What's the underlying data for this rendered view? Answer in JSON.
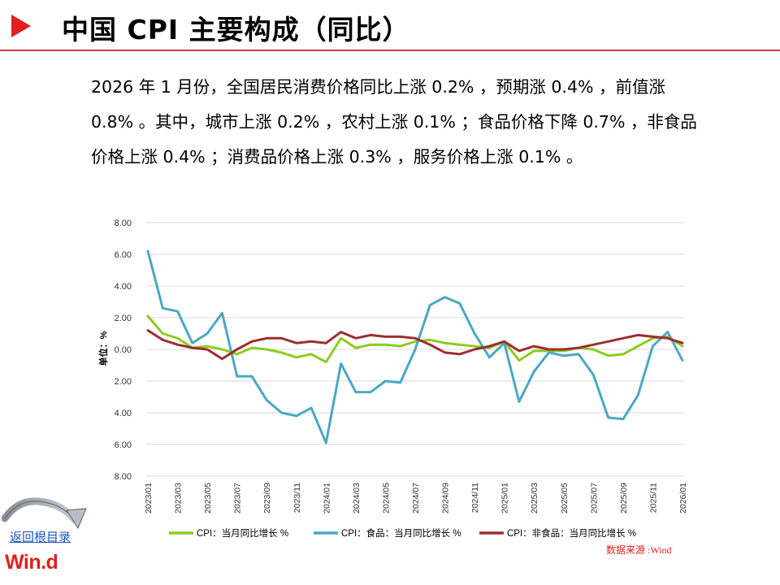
{
  "header": {
    "title": "中国 CPI 主要构成（同比）"
  },
  "summary": {
    "text": "2026 年 1 月份，全国居民消费价格同比上涨 0.2% ，预期涨 0.4% ，前值涨 0.8% 。其中，城市上涨 0.2% ，农村上涨 0.1% ；食品价格下降 0.7% ，非食品价格上涨 0.4% ；消费品价格上涨 0.3% ，服务价格上涨 0.1% 。"
  },
  "nav": {
    "back_label": "返回根目录",
    "logo_text": "Win.d"
  },
  "source": "数据来源 :Wind",
  "colors": {
    "accent": "#e02020",
    "title_rule": "#d63a3a",
    "series_cpi": "#8ccc1e",
    "series_food": "#4aa8c4",
    "series_nonfood": "#9b2f2f",
    "grid": "#d9d9d9",
    "tick_text": "#333333"
  },
  "chart_data": {
    "type": "line",
    "ylabel": "单位：%",
    "ylim": [
      -8,
      8
    ],
    "yticks": [
      8,
      6,
      4,
      2,
      0,
      -2,
      -4,
      -6,
      -8
    ],
    "ytick_labels": [
      "8.00",
      "6.00",
      "4.00",
      "2.00",
      "0.00",
      "2.00",
      "4.00",
      "6.00",
      "8.00"
    ],
    "x": [
      "2023/01",
      "2023/02",
      "2023/03",
      "2023/04",
      "2023/05",
      "2023/06",
      "2023/07",
      "2023/08",
      "2023/09",
      "2023/10",
      "2023/11",
      "2023/12",
      "2024/01",
      "2024/02",
      "2024/03",
      "2024/04",
      "2024/05",
      "2024/06",
      "2024/07",
      "2024/08",
      "2024/09",
      "2024/10",
      "2024/11",
      "2024/12",
      "2025/01",
      "2025/02",
      "2025/03",
      "2025/04",
      "2025/05",
      "2025/06",
      "2025/07",
      "2025/08",
      "2025/09",
      "2025/10",
      "2025/11",
      "2025/12",
      "2026/01"
    ],
    "xtick_labels": [
      "2023/01",
      "2023/03",
      "2023/05",
      "2023/07",
      "2023/09",
      "2023/11",
      "2024/01",
      "2024/03",
      "2024/05",
      "2024/07",
      "2024/09",
      "2024/11",
      "2025/01",
      "2025/03",
      "2025/05",
      "2025/07",
      "2025/09",
      "2025/11",
      "2026/01"
    ],
    "series": [
      {
        "name": "CPI：当月同比增长 %",
        "color_key": "series_cpi",
        "values": [
          2.1,
          1.0,
          0.7,
          0.1,
          0.2,
          0.0,
          -0.3,
          0.1,
          0.0,
          -0.2,
          -0.5,
          -0.3,
          -0.8,
          0.7,
          0.1,
          0.3,
          0.3,
          0.2,
          0.5,
          0.6,
          0.4,
          0.3,
          0.2,
          0.1,
          0.5,
          -0.7,
          -0.1,
          -0.1,
          -0.1,
          0.1,
          0.0,
          -0.4,
          -0.3,
          0.2,
          0.7,
          0.8,
          0.2
        ]
      },
      {
        "name": "CPI：食品：当月同比增长 %",
        "color_key": "series_food",
        "values": [
          6.2,
          2.6,
          2.4,
          0.4,
          1.0,
          2.3,
          -1.7,
          -1.7,
          -3.2,
          -4.0,
          -4.2,
          -3.7,
          -5.9,
          -0.9,
          -2.7,
          -2.7,
          -2.0,
          -2.1,
          0.0,
          2.8,
          3.3,
          2.9,
          1.0,
          -0.5,
          0.4,
          -3.3,
          -1.4,
          -0.2,
          -0.4,
          -0.3,
          -1.6,
          -4.3,
          -4.4,
          -2.9,
          0.2,
          1.1,
          -0.7
        ]
      },
      {
        "name": "CPI：非食品：当月同比增长 %",
        "color_key": "series_nonfood",
        "values": [
          1.2,
          0.6,
          0.3,
          0.1,
          0.0,
          -0.6,
          0.0,
          0.5,
          0.7,
          0.7,
          0.4,
          0.5,
          0.4,
          1.1,
          0.7,
          0.9,
          0.8,
          0.8,
          0.7,
          0.3,
          -0.2,
          -0.3,
          0.0,
          0.2,
          0.5,
          -0.1,
          0.2,
          0.0,
          0.0,
          0.1,
          0.3,
          0.5,
          0.7,
          0.9,
          0.8,
          0.7,
          0.4
        ]
      }
    ]
  }
}
